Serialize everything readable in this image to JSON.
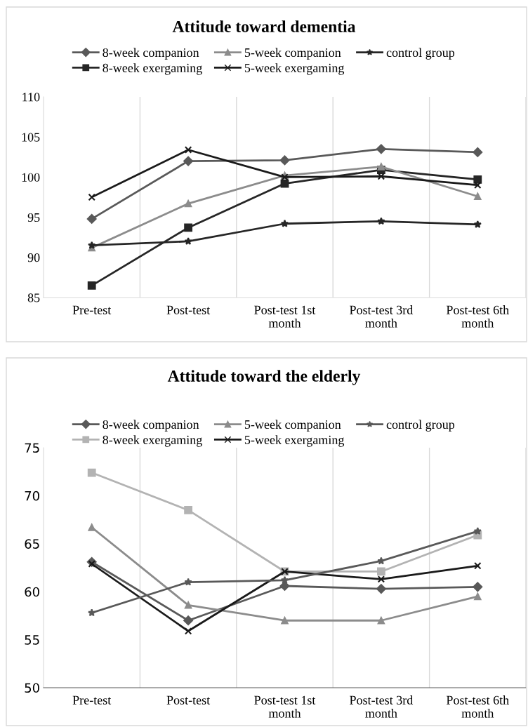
{
  "chart_data": [
    {
      "type": "line",
      "title": "Attitude toward dementia",
      "categories": [
        "Pre-test",
        "Post-test",
        "Post-test 1st month",
        "Post-test 3rd month",
        "Post-test 6th month"
      ],
      "ylim": [
        85,
        110
      ],
      "yticks": [
        85,
        90,
        95,
        100,
        105,
        110
      ],
      "grid": "x",
      "legend": "top",
      "series": [
        {
          "name": "8-week companion",
          "color": "#595959",
          "marker": "diamond",
          "values": [
            94.8,
            102.0,
            102.1,
            103.5,
            103.1
          ]
        },
        {
          "name": "8-week exergaming",
          "color": "#262626",
          "marker": "square",
          "values": [
            86.5,
            93.7,
            99.2,
            100.9,
            99.7
          ]
        },
        {
          "name": "5-week companion",
          "color": "#8c8c8c",
          "marker": "triangle",
          "values": [
            91.2,
            96.7,
            100.2,
            101.3,
            97.6
          ]
        },
        {
          "name": "5-week exergaming",
          "color": "#1a1a1a",
          "marker": "cross",
          "values": [
            97.5,
            103.4,
            100.0,
            100.1,
            99.0
          ]
        },
        {
          "name": "control group",
          "color": "#262626",
          "marker": "star",
          "values": [
            91.5,
            92.0,
            94.2,
            94.5,
            94.1
          ]
        }
      ]
    },
    {
      "type": "line",
      "title": "Attitude toward the elderly",
      "categories": [
        "Pre-test",
        "Post-test",
        "Post-test 1st month",
        "Post-test 3rd month",
        "Post-test 6th month"
      ],
      "ylim": [
        50,
        75
      ],
      "yticks": [
        50,
        55,
        60,
        65,
        70,
        75
      ],
      "grid": "x",
      "legend": "top",
      "series": [
        {
          "name": "8-week companion",
          "color": "#595959",
          "marker": "diamond",
          "values": [
            63.1,
            57.0,
            60.6,
            60.3,
            60.5
          ]
        },
        {
          "name": "8-week exergaming",
          "color": "#b3b3b3",
          "marker": "square",
          "values": [
            72.4,
            68.5,
            62.1,
            62.1,
            65.9
          ]
        },
        {
          "name": "5-week companion",
          "color": "#8c8c8c",
          "marker": "triangle",
          "values": [
            66.7,
            58.6,
            57.0,
            57.0,
            59.5
          ]
        },
        {
          "name": "5-week exergaming",
          "color": "#1a1a1a",
          "marker": "cross",
          "values": [
            62.9,
            55.9,
            62.1,
            61.3,
            62.7
          ]
        },
        {
          "name": "control group",
          "color": "#595959",
          "marker": "star",
          "values": [
            57.8,
            61.0,
            61.2,
            63.2,
            66.3
          ]
        }
      ]
    }
  ]
}
